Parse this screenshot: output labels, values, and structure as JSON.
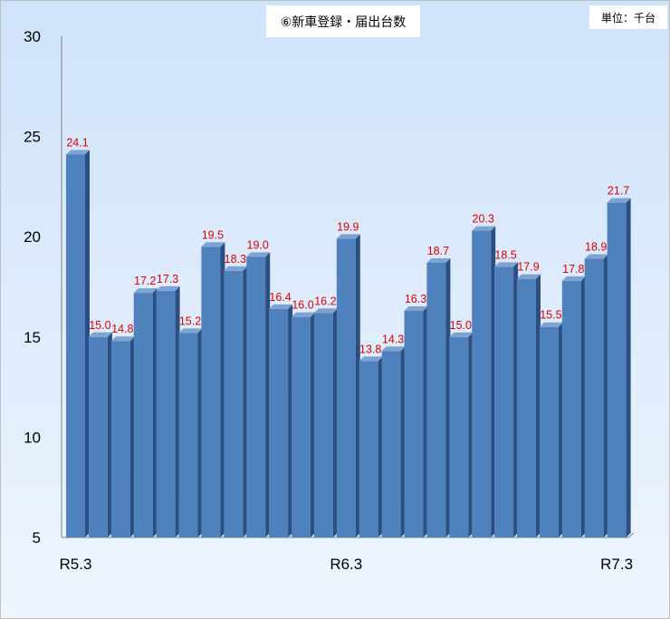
{
  "chart_data": {
    "type": "bar",
    "title": "⑥新車登録・届出台数",
    "unit": "単位：千台",
    "categories": [
      "R5.3",
      "",
      "",
      "",
      "",
      "",
      "",
      "",
      "",
      "",
      "",
      "",
      "R6.3",
      "",
      "",
      "",
      "",
      "",
      "",
      "",
      "",
      "",
      "",
      "",
      "R7.3"
    ],
    "values": [
      24.1,
      15.0,
      14.8,
      17.2,
      17.3,
      15.2,
      19.5,
      18.3,
      19.0,
      16.4,
      16.0,
      16.2,
      19.9,
      13.8,
      14.3,
      16.3,
      18.7,
      15.0,
      20.3,
      18.5,
      17.9,
      15.5,
      17.8,
      18.9,
      21.7
    ],
    "ylim": [
      5,
      30
    ],
    "yticks": [
      5,
      10,
      15,
      20,
      25,
      30
    ],
    "xlabel": "",
    "ylabel": "",
    "colors": {
      "bar_front": "#4f81bd",
      "bar_side": "#2b4f80",
      "bar_top": "#7ea3d3",
      "label": "#e00000"
    }
  }
}
